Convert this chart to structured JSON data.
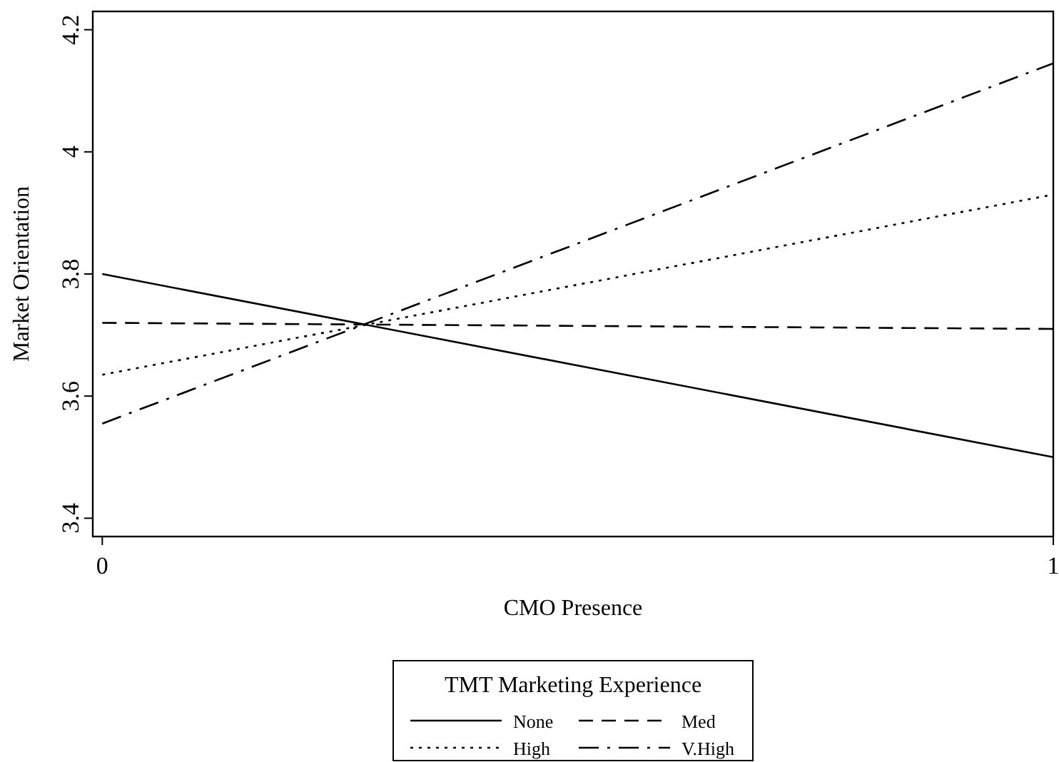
{
  "chart_data": {
    "type": "line",
    "xlabel": "CMO Presence",
    "ylabel": "Market Orientation",
    "legend_title": "TMT Marketing Experience",
    "legend": "bottom",
    "grid": false,
    "x": [
      0,
      1
    ],
    "xlim": [
      -0.01,
      1
    ],
    "xticks": [
      0,
      1
    ],
    "ylim": [
      3.37,
      4.23
    ],
    "yticks": [
      3.4,
      3.6,
      3.8,
      4,
      4.2
    ],
    "series": [
      {
        "name": "None",
        "color": "#000000",
        "line_style": "solid",
        "values": [
          3.8,
          3.5
        ]
      },
      {
        "name": "Med",
        "color": "#000000",
        "line_style": "dashed",
        "values": [
          3.72,
          3.71
        ]
      },
      {
        "name": "High",
        "color": "#000000",
        "line_style": "dotted",
        "values": [
          3.635,
          3.93
        ]
      },
      {
        "name": "V.High",
        "color": "#000000",
        "line_style": "dashdot",
        "values": [
          3.555,
          4.145
        ]
      }
    ]
  }
}
